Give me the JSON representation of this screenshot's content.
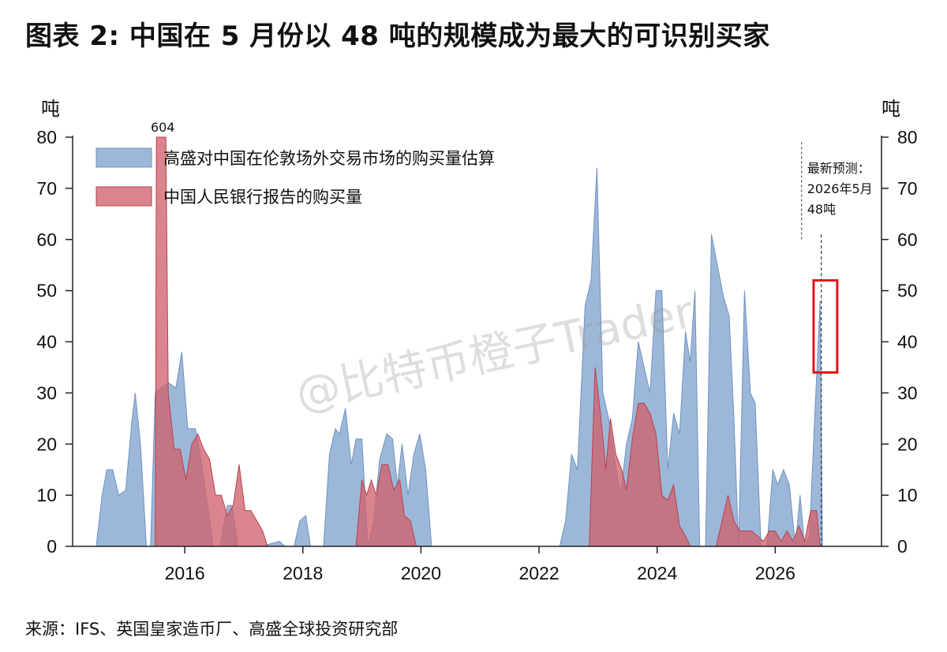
{
  "title": "图表 2: 中国在 5 月份以 48 吨的规模成为最大的可识别买家",
  "source": "来源：IFS、英国皇家造币厂、高盛全球投资研究部",
  "watermark": "@比特币橙子Trader",
  "colors": {
    "series_blue": "#8fadd3",
    "series_red": "#d0636d",
    "highlight_box": "#e0151b",
    "axis": "#222222"
  },
  "chart_data": {
    "type": "area",
    "ylabel_left": "吨",
    "ylabel_right": "吨",
    "ylim": [
      0,
      80
    ],
    "yticks": [
      0,
      10,
      20,
      30,
      40,
      50,
      60,
      70,
      80
    ],
    "xlim": [
      2014.1,
      2027.8
    ],
    "xticks": [
      2016,
      2018,
      2020,
      2022,
      2024,
      2026
    ],
    "legend_position": "top-left",
    "grid": false,
    "series": [
      {
        "name": "高盛对中国在伦敦场外交易市场的购买量估算",
        "color": "#8fadd3",
        "points": [
          [
            2014.5,
            0
          ],
          [
            2014.6,
            10
          ],
          [
            2014.68,
            15
          ],
          [
            2014.78,
            15
          ],
          [
            2014.88,
            10
          ],
          [
            2015.0,
            11
          ],
          [
            2015.1,
            24
          ],
          [
            2015.16,
            30
          ],
          [
            2015.25,
            20
          ],
          [
            2015.35,
            0
          ],
          [
            2015.42,
            0
          ],
          [
            2015.5,
            30
          ],
          [
            2015.6,
            31
          ],
          [
            2015.72,
            32
          ],
          [
            2015.85,
            31
          ],
          [
            2015.95,
            38
          ],
          [
            2016.05,
            23
          ],
          [
            2016.18,
            23
          ],
          [
            2016.26,
            18
          ],
          [
            2016.35,
            11
          ],
          [
            2016.48,
            0
          ],
          [
            2016.6,
            0
          ],
          [
            2016.72,
            8
          ],
          [
            2016.8,
            8
          ],
          [
            2016.9,
            0
          ],
          [
            2017.0,
            0
          ],
          [
            2017.3,
            0
          ],
          [
            2017.6,
            1
          ],
          [
            2017.7,
            0
          ],
          [
            2017.85,
            0
          ],
          [
            2017.95,
            5
          ],
          [
            2018.05,
            6
          ],
          [
            2018.13,
            0
          ],
          [
            2018.2,
            0
          ],
          [
            2018.35,
            0
          ],
          [
            2018.45,
            18
          ],
          [
            2018.55,
            23
          ],
          [
            2018.62,
            22
          ],
          [
            2018.72,
            27
          ],
          [
            2018.82,
            16
          ],
          [
            2018.9,
            21
          ],
          [
            2019.0,
            21
          ],
          [
            2019.1,
            0
          ],
          [
            2019.2,
            5
          ],
          [
            2019.3,
            17
          ],
          [
            2019.42,
            22
          ],
          [
            2019.52,
            21
          ],
          [
            2019.6,
            12
          ],
          [
            2019.68,
            20
          ],
          [
            2019.78,
            10
          ],
          [
            2019.88,
            18
          ],
          [
            2019.98,
            22
          ],
          [
            2020.08,
            15
          ],
          [
            2020.18,
            0
          ],
          [
            2020.4,
            0
          ],
          [
            2022.35,
            0
          ],
          [
            2022.45,
            5
          ],
          [
            2022.55,
            18
          ],
          [
            2022.65,
            15
          ],
          [
            2022.78,
            47
          ],
          [
            2022.88,
            52
          ],
          [
            2022.98,
            74
          ],
          [
            2023.08,
            30
          ],
          [
            2023.18,
            25
          ],
          [
            2023.28,
            17
          ],
          [
            2023.38,
            10
          ],
          [
            2023.48,
            20
          ],
          [
            2023.58,
            25
          ],
          [
            2023.68,
            40
          ],
          [
            2023.78,
            35
          ],
          [
            2023.88,
            30
          ],
          [
            2023.98,
            50
          ],
          [
            2024.08,
            50
          ],
          [
            2024.18,
            15
          ],
          [
            2024.28,
            26
          ],
          [
            2024.38,
            22
          ],
          [
            2024.48,
            42
          ],
          [
            2024.56,
            36
          ],
          [
            2024.64,
            50
          ],
          [
            2024.72,
            0
          ],
          [
            2024.82,
            0
          ],
          [
            2024.92,
            61
          ],
          [
            2025.02,
            55
          ],
          [
            2025.12,
            49
          ],
          [
            2025.22,
            45
          ],
          [
            2025.3,
            25
          ],
          [
            2025.38,
            0
          ],
          [
            2025.48,
            50
          ],
          [
            2025.58,
            30
          ],
          [
            2025.66,
            28
          ],
          [
            2025.76,
            0
          ],
          [
            2025.86,
            0
          ],
          [
            2025.96,
            15
          ],
          [
            2026.04,
            12
          ],
          [
            2026.14,
            15
          ],
          [
            2026.24,
            12
          ],
          [
            2026.34,
            0
          ],
          [
            2026.42,
            10
          ],
          [
            2026.5,
            0
          ],
          [
            2026.58,
            2
          ],
          [
            2026.66,
            23
          ],
          [
            2026.76,
            48
          ],
          [
            2026.8,
            0
          ]
        ]
      },
      {
        "name": "中国人民银行报告的购买量",
        "color": "#d0636d",
        "points": [
          [
            2015.5,
            0
          ],
          [
            2015.52,
            80
          ],
          [
            2015.68,
            80
          ],
          [
            2015.72,
            30
          ],
          [
            2015.82,
            19
          ],
          [
            2015.92,
            19
          ],
          [
            2016.02,
            13
          ],
          [
            2016.12,
            20
          ],
          [
            2016.22,
            22
          ],
          [
            2016.32,
            19
          ],
          [
            2016.42,
            17
          ],
          [
            2016.52,
            10
          ],
          [
            2016.62,
            10
          ],
          [
            2016.72,
            6
          ],
          [
            2016.82,
            8
          ],
          [
            2016.92,
            16
          ],
          [
            2017.02,
            7
          ],
          [
            2017.12,
            7
          ],
          [
            2017.22,
            5
          ],
          [
            2017.32,
            3
          ],
          [
            2017.4,
            0
          ],
          [
            2018.9,
            0
          ],
          [
            2019.0,
            13
          ],
          [
            2019.08,
            10
          ],
          [
            2019.16,
            13
          ],
          [
            2019.24,
            10
          ],
          [
            2019.34,
            16
          ],
          [
            2019.44,
            16
          ],
          [
            2019.54,
            11
          ],
          [
            2019.64,
            13
          ],
          [
            2019.72,
            6
          ],
          [
            2019.82,
            5
          ],
          [
            2019.92,
            0
          ],
          [
            2022.85,
            0
          ],
          [
            2022.95,
            35
          ],
          [
            2023.05,
            25
          ],
          [
            2023.13,
            15
          ],
          [
            2023.21,
            25
          ],
          [
            2023.3,
            18
          ],
          [
            2023.4,
            15
          ],
          [
            2023.48,
            11
          ],
          [
            2023.58,
            21
          ],
          [
            2023.68,
            28
          ],
          [
            2023.78,
            28
          ],
          [
            2023.88,
            26
          ],
          [
            2023.98,
            22
          ],
          [
            2024.08,
            10
          ],
          [
            2024.18,
            9
          ],
          [
            2024.28,
            12
          ],
          [
            2024.38,
            4
          ],
          [
            2024.48,
            2
          ],
          [
            2024.56,
            0
          ],
          [
            2025.0,
            0
          ],
          [
            2025.1,
            5
          ],
          [
            2025.2,
            10
          ],
          [
            2025.3,
            5
          ],
          [
            2025.4,
            3
          ],
          [
            2025.5,
            3
          ],
          [
            2025.6,
            3
          ],
          [
            2025.7,
            2
          ],
          [
            2025.8,
            1
          ],
          [
            2025.9,
            3
          ],
          [
            2026.0,
            3
          ],
          [
            2026.1,
            1
          ],
          [
            2026.2,
            3
          ],
          [
            2026.3,
            1
          ],
          [
            2026.4,
            4
          ],
          [
            2026.5,
            1
          ],
          [
            2026.6,
            7
          ],
          [
            2026.7,
            7
          ],
          [
            2026.76,
            0
          ]
        ]
      }
    ],
    "annotations": [
      {
        "text": "604",
        "x": 2015.6,
        "y": 80
      },
      {
        "text": "最新预测：",
        "x": 2026.5,
        "y": 74
      },
      {
        "text": "2026年5月",
        "x": 2026.5,
        "y": 70
      },
      {
        "text": "48吨",
        "x": 2026.5,
        "y": 66
      }
    ],
    "forecast_marker_x": 2026.78,
    "highlight_box": {
      "x_range": [
        2026.65,
        2027.05
      ],
      "y_range": [
        34,
        52
      ]
    }
  }
}
